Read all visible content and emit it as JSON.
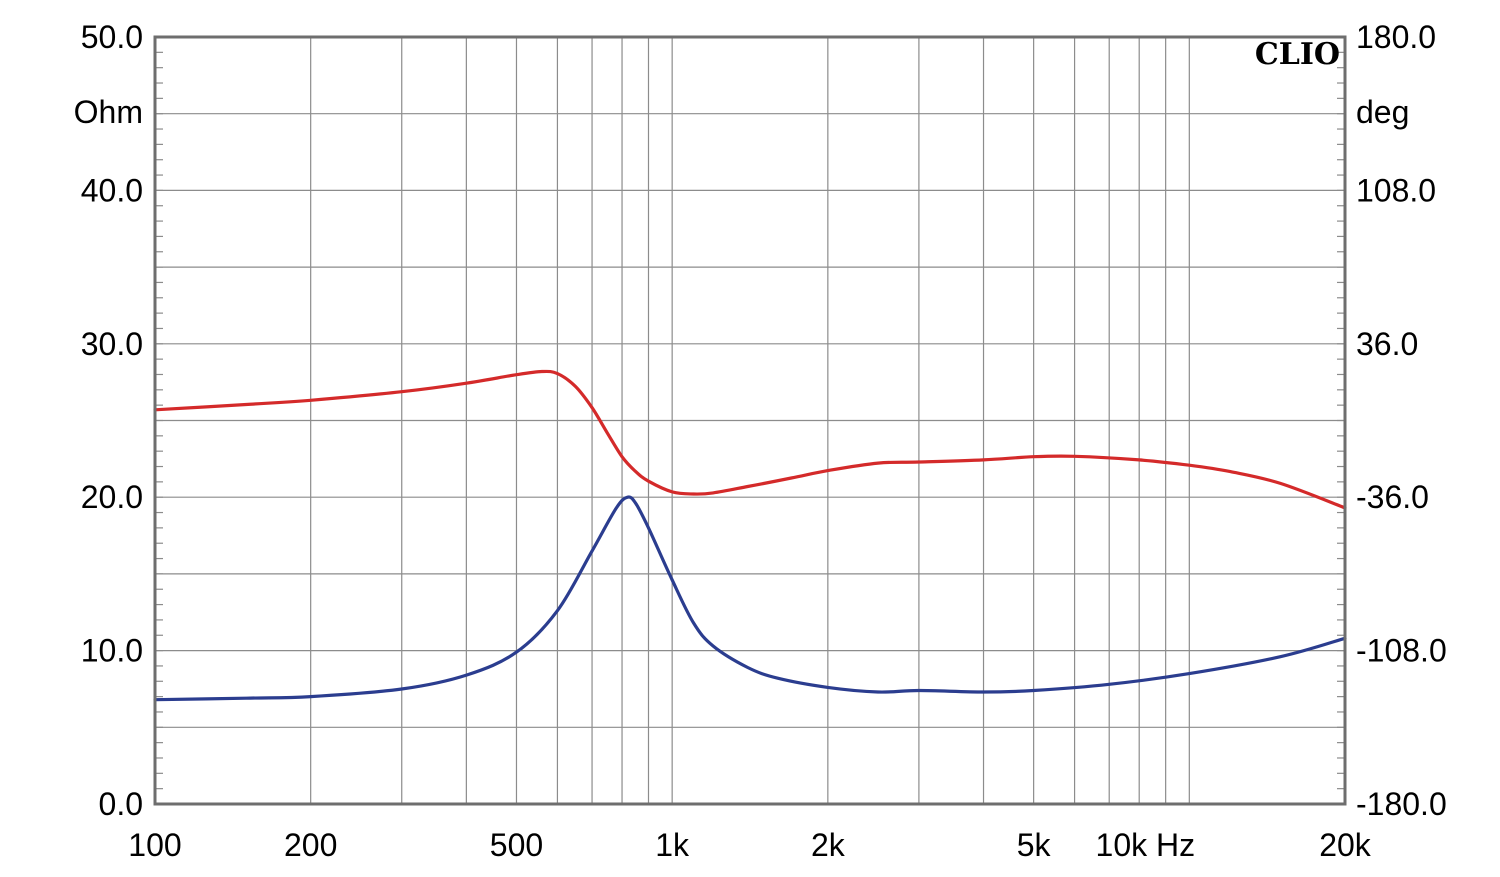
{
  "chart_data": {
    "type": "line",
    "brand": "CLIO",
    "x_scale": "log",
    "xlim": [
      100,
      20000
    ],
    "x_ticks": [
      {
        "value": 100,
        "label": "100"
      },
      {
        "value": 200,
        "label": "200"
      },
      {
        "value": 500,
        "label": "500"
      },
      {
        "value": 1000,
        "label": "1k"
      },
      {
        "value": 2000,
        "label": "2k"
      },
      {
        "value": 5000,
        "label": "5k"
      },
      {
        "value": 10000,
        "label": "10k Hz"
      },
      {
        "value": 20000,
        "label": "20k"
      }
    ],
    "y_left": {
      "unit": "Ohm",
      "lim": [
        0,
        50
      ],
      "ticks": [
        "0.0",
        "10.0",
        "20.0",
        "30.0",
        "40.0",
        "50.0"
      ]
    },
    "y_right": {
      "unit": "deg",
      "lim": [
        -180,
        180
      ],
      "ticks": [
        "-180.0",
        "-108.0",
        "-36.0",
        "36.0",
        "108.0",
        "180.0"
      ]
    },
    "grid": true,
    "series": [
      {
        "color": "#2b3d8f",
        "axis": "left",
        "x": [
          100,
          150,
          200,
          300,
          400,
          500,
          600,
          700,
          780,
          820,
          850,
          900,
          1000,
          1100,
          1200,
          1400,
          1600,
          2000,
          2500,
          3000,
          4000,
          5000,
          7000,
          10000,
          15000,
          20000
        ],
        "y": [
          6.8,
          6.9,
          7.0,
          7.5,
          8.4,
          9.9,
          12.6,
          16.5,
          19.3,
          20.0,
          19.6,
          18.0,
          14.6,
          11.8,
          10.3,
          8.9,
          8.2,
          7.6,
          7.3,
          7.4,
          7.3,
          7.4,
          7.8,
          8.5,
          9.6,
          10.8
        ]
      },
      {
        "color": "#d42a2a",
        "axis": "right",
        "x": [
          100,
          150,
          200,
          300,
          400,
          500,
          560,
          600,
          650,
          700,
          750,
          800,
          850,
          900,
          1000,
          1100,
          1200,
          1400,
          1700,
          2000,
          2500,
          3000,
          4000,
          5000,
          6000,
          8000,
          10000,
          12000,
          15000,
          20000
        ],
        "y": [
          5.0,
          7.5,
          9.5,
          13.5,
          17.5,
          21.5,
          23.0,
          22.0,
          16.0,
          6.0,
          -6.0,
          -17.0,
          -24.0,
          -28.5,
          -33.5,
          -34.5,
          -34.0,
          -31.0,
          -27.0,
          -23.5,
          -20.0,
          -19.5,
          -18.5,
          -17.0,
          -16.8,
          -18.5,
          -21.0,
          -24.0,
          -29.5,
          -41.0
        ]
      }
    ]
  }
}
